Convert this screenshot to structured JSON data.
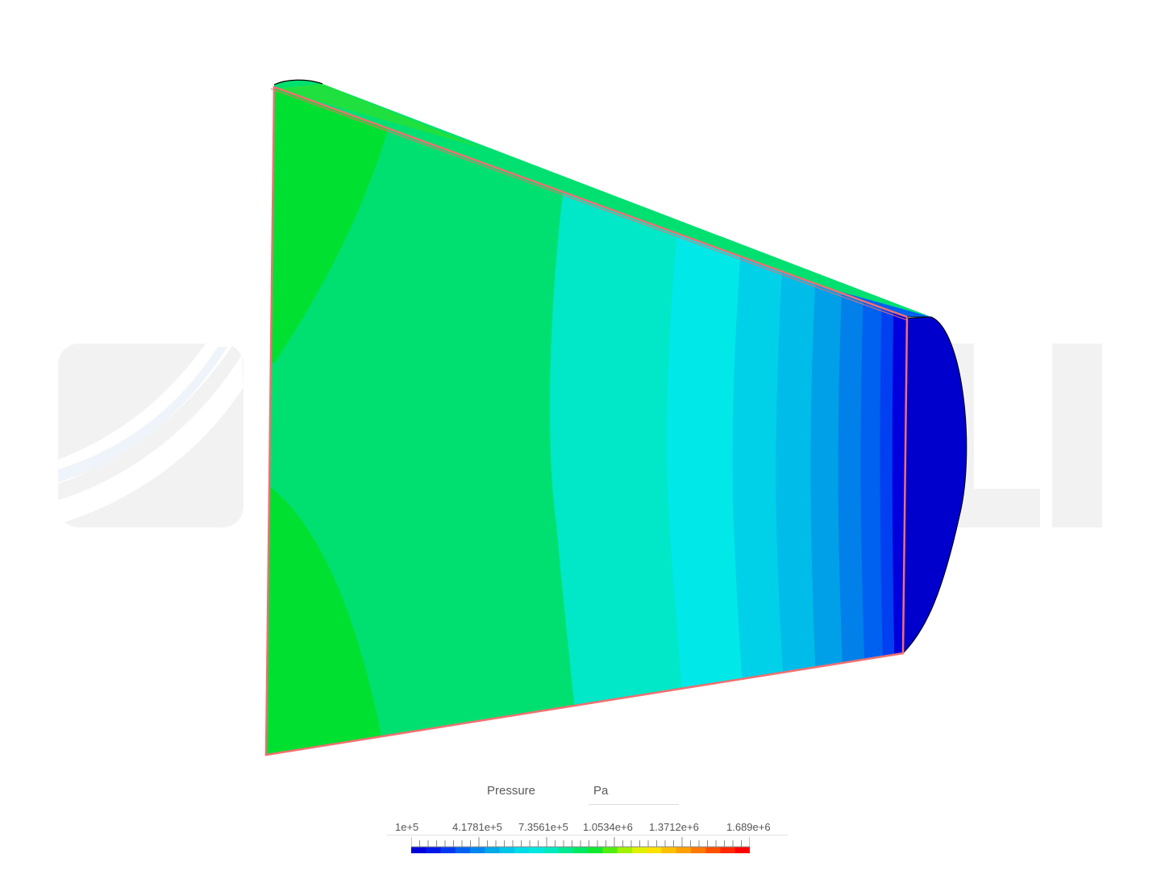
{
  "legend": {
    "title": "Pressure",
    "unit": "Pa",
    "ticks": [
      "1e+5",
      "4.1781e+5",
      "7.3561e+5",
      "1.0534e+6",
      "1.3712e+6",
      "1.689e+6"
    ],
    "min": 100000,
    "max": 1689000,
    "colors": [
      "#0000dd",
      "#0018e8",
      "#003af0",
      "#0062f0",
      "#0086ee",
      "#00a8e8",
      "#00c4e8",
      "#00dbe8",
      "#00e8e0",
      "#00e8c0",
      "#00e890",
      "#00e860",
      "#10e830",
      "#50ee10",
      "#a0f000",
      "#e0f000",
      "#ffe000",
      "#ffc000",
      "#ffa000",
      "#ff7800",
      "#ff5000",
      "#ff2800",
      "#ff0000"
    ]
  },
  "watermark": {
    "color": "#f2f2f2",
    "accent": "#eef4fa"
  },
  "model": {
    "outline_color": "#f07070",
    "contour_colors": {
      "green_light": "#00e070",
      "green_bright": "#00e030",
      "teal": "#00e8c8",
      "cyan": "#00e8e8",
      "cyan2": "#00d0e8",
      "cyan3": "#00bce8",
      "blue1": "#00a0e8",
      "blue2": "#0080e8",
      "blue3": "#0060f0",
      "blue4": "#0040f0",
      "blue5": "#0018e0",
      "navy": "#0000cc"
    }
  }
}
